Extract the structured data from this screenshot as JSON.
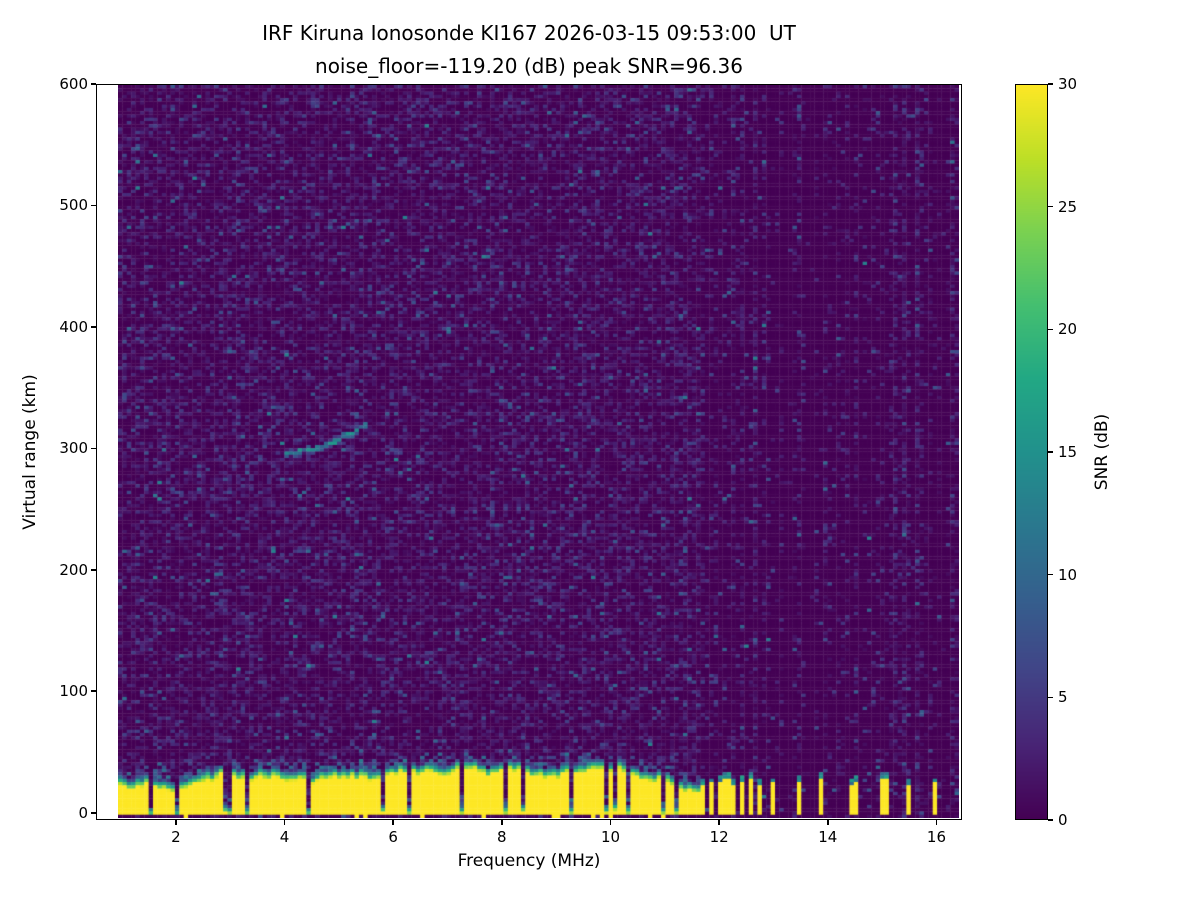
{
  "chart_data": {
    "type": "heatmap",
    "title": "IRF Kiruna Ionosonde KI167 2026-03-15 09:53:00  UT",
    "subtitle": "noise_floor=-119.20 (dB) peak SNR=96.36",
    "station": "KI167",
    "timestamp_ut": "2026-03-15 09:53:00",
    "noise_floor_db": -119.2,
    "peak_snr_db": 96.36,
    "xlabel": "Frequency (MHz)",
    "ylabel": "Virtual range (km)",
    "xlim": [
      0.53,
      16.47
    ],
    "ylim": [
      -6,
      600
    ],
    "xticks": [
      2,
      4,
      6,
      8,
      10,
      12,
      14,
      16
    ],
    "yticks": [
      0,
      100,
      200,
      300,
      400,
      500,
      600
    ],
    "colormap": "viridis",
    "colorbar": {
      "label": "SNR (dB)",
      "min": 0,
      "max": 30,
      "ticks": [
        0,
        5,
        10,
        15,
        20,
        25,
        30
      ]
    },
    "data_extent": {
      "freq_mhz": [
        0.935,
        16.42
      ],
      "range_km": [
        -4.4,
        599.2
      ]
    },
    "features": {
      "background": "speckled low-SNR noise 0-12 dB over dark viridis floor, vertical interference striping above 11.7 MHz",
      "ground_clutter_band": {
        "freq_mhz": [
          0.95,
          11.68
        ],
        "range_km": [
          -3,
          42
        ],
        "snr_db": 30,
        "notch_freqs_mhz": [
          1.55,
          2.05,
          3.0,
          3.35,
          4.45,
          6.3,
          7.3,
          8.05,
          9.3,
          9.9,
          10.35,
          10.95
        ]
      },
      "interference_columns_mhz": [
        11.7,
        11.85,
        12.0,
        12.15,
        12.3,
        12.45,
        12.62,
        12.78,
        12.97,
        13.45,
        13.9,
        14.42,
        14.52,
        15.05,
        15.5,
        15.95
      ],
      "echo_trace": {
        "freq_mhz": [
          4.0,
          5.55
        ],
        "range_km": [
          296,
          321
        ],
        "snr_db": [
          9,
          16
        ],
        "shape": "thin upward-curving teal arc"
      },
      "faint_streak": {
        "freq_mhz": [
          10.45,
          10.9
        ],
        "range_km": [
          468,
          443
        ]
      }
    }
  }
}
